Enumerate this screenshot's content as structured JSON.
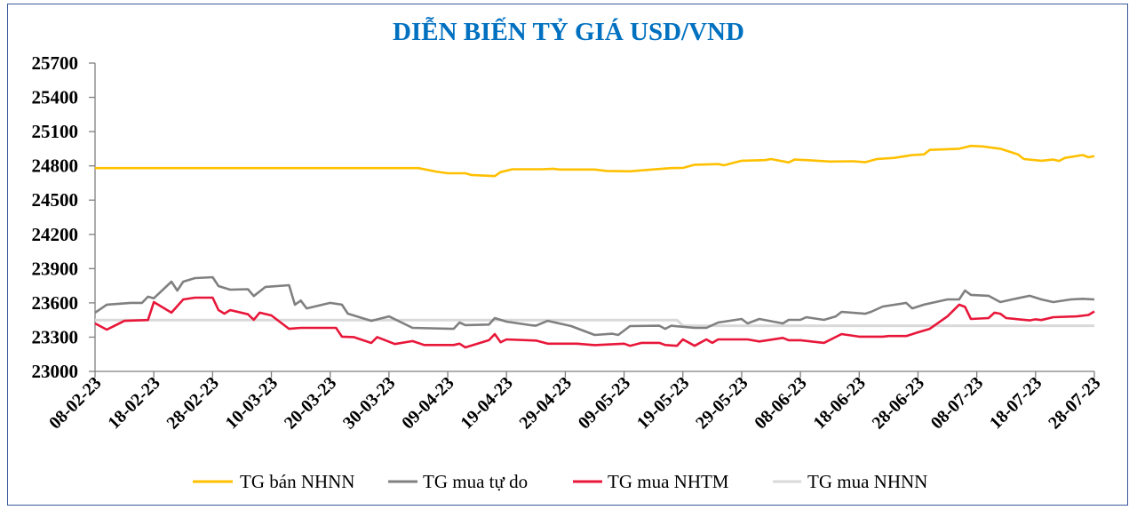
{
  "chart_data": {
    "type": "line",
    "title": "DIỄN BIẾN TỶ GIÁ USD/VND",
    "xlabel": "",
    "ylabel": "",
    "ylim": [
      23000,
      25700
    ],
    "yticks": [
      "23000",
      "23300",
      "23600",
      "23900",
      "24200",
      "24500",
      "24800",
      "25100",
      "25400",
      "25700"
    ],
    "xticks": [
      "08-02-23",
      "18-02-23",
      "28-02-23",
      "10-03-23",
      "20-03-23",
      "30-03-23",
      "09-04-23",
      "19-04-23",
      "29-04-23",
      "09-05-23",
      "19-05-23",
      "29-05-23",
      "08-06-23",
      "18-06-23",
      "28-06-23",
      "08-07-23",
      "18-07-23",
      "28-07-23"
    ],
    "grid": false,
    "legend_position": "bottom",
    "series": [
      {
        "name": "TG bán NHNN",
        "color": "#FFC000",
        "points": [
          [
            "08-02-23",
            24780
          ],
          [
            "04-04-23",
            24780
          ],
          [
            "07-04-23",
            24750
          ],
          [
            "09-04-23",
            24735
          ],
          [
            "12-04-23",
            24735
          ],
          [
            "13-04-23",
            24720
          ],
          [
            "17-04-23",
            24710
          ],
          [
            "18-04-23",
            24745
          ],
          [
            "20-04-23",
            24770
          ],
          [
            "25-04-23",
            24770
          ],
          [
            "27-04-23",
            24775
          ],
          [
            "28-04-23",
            24768
          ],
          [
            "04-05-23",
            24768
          ],
          [
            "06-05-23",
            24755
          ],
          [
            "10-05-23",
            24752
          ],
          [
            "13-05-23",
            24765
          ],
          [
            "17-05-23",
            24780
          ],
          [
            "19-05-23",
            24782
          ],
          [
            "21-05-23",
            24810
          ],
          [
            "25-05-23",
            24815
          ],
          [
            "26-05-23",
            24805
          ],
          [
            "29-05-23",
            24845
          ],
          [
            "02-06-23",
            24850
          ],
          [
            "03-06-23",
            24860
          ],
          [
            "06-06-23",
            24830
          ],
          [
            "07-06-23",
            24855
          ],
          [
            "09-06-23",
            24850
          ],
          [
            "13-06-23",
            24838
          ],
          [
            "17-06-23",
            24840
          ],
          [
            "19-06-23",
            24832
          ],
          [
            "21-06-23",
            24860
          ],
          [
            "24-06-23",
            24870
          ],
          [
            "27-06-23",
            24895
          ],
          [
            "29-06-23",
            24900
          ],
          [
            "30-06-23",
            24940
          ],
          [
            "05-07-23",
            24950
          ],
          [
            "07-07-23",
            24975
          ],
          [
            "09-07-23",
            24970
          ],
          [
            "12-07-23",
            24950
          ],
          [
            "15-07-23",
            24900
          ],
          [
            "16-07-23",
            24860
          ],
          [
            "19-07-23",
            24845
          ],
          [
            "21-07-23",
            24855
          ],
          [
            "22-07-23",
            24843
          ],
          [
            "23-07-23",
            24870
          ],
          [
            "26-07-23",
            24895
          ],
          [
            "27-07-23",
            24875
          ],
          [
            "28-07-23",
            24885
          ]
        ]
      },
      {
        "name": "TG mua tự do",
        "color": "#808080",
        "points": [
          [
            "08-02-23",
            23514
          ],
          [
            "10-02-23",
            23584
          ],
          [
            "14-02-23",
            23600
          ],
          [
            "16-02-23",
            23600
          ],
          [
            "17-02-23",
            23654
          ],
          [
            "18-02-23",
            23640
          ],
          [
            "21-02-23",
            23786
          ],
          [
            "22-02-23",
            23708
          ],
          [
            "23-02-23",
            23786
          ],
          [
            "25-02-23",
            23817
          ],
          [
            "28-02-23",
            23825
          ],
          [
            "01-03-23",
            23747
          ],
          [
            "03-03-23",
            23716
          ],
          [
            "06-03-23",
            23720
          ],
          [
            "07-03-23",
            23660
          ],
          [
            "09-03-23",
            23740
          ],
          [
            "13-03-23",
            23755
          ],
          [
            "14-03-23",
            23584
          ],
          [
            "15-03-23",
            23620
          ],
          [
            "16-03-23",
            23552
          ],
          [
            "20-03-23",
            23600
          ],
          [
            "22-03-23",
            23584
          ],
          [
            "23-03-23",
            23506
          ],
          [
            "27-03-23",
            23443
          ],
          [
            "30-03-23",
            23482
          ],
          [
            "03-04-23",
            23381
          ],
          [
            "10-04-23",
            23373
          ],
          [
            "11-04-23",
            23428
          ],
          [
            "12-04-23",
            23405
          ],
          [
            "16-04-23",
            23410
          ],
          [
            "17-04-23",
            23467
          ],
          [
            "19-04-23",
            23436
          ],
          [
            "23-04-23",
            23405
          ],
          [
            "24-04-23",
            23400
          ],
          [
            "26-04-23",
            23443
          ],
          [
            "30-04-23",
            23397
          ],
          [
            "04-05-23",
            23319
          ],
          [
            "07-05-23",
            23330
          ],
          [
            "08-05-23",
            23319
          ],
          [
            "10-05-23",
            23397
          ],
          [
            "15-05-23",
            23400
          ],
          [
            "16-05-23",
            23373
          ],
          [
            "17-05-23",
            23400
          ],
          [
            "21-05-23",
            23381
          ],
          [
            "23-05-23",
            23381
          ],
          [
            "25-05-23",
            23428
          ],
          [
            "29-05-23",
            23459
          ],
          [
            "30-05-23",
            23420
          ],
          [
            "01-06-23",
            23459
          ],
          [
            "05-06-23",
            23420
          ],
          [
            "06-06-23",
            23451
          ],
          [
            "08-06-23",
            23451
          ],
          [
            "09-06-23",
            23475
          ],
          [
            "12-06-23",
            23451
          ],
          [
            "14-06-23",
            23482
          ],
          [
            "15-06-23",
            23521
          ],
          [
            "19-06-23",
            23505
          ],
          [
            "20-06-23",
            23521
          ],
          [
            "22-06-23",
            23568
          ],
          [
            "26-06-23",
            23600
          ],
          [
            "27-06-23",
            23552
          ],
          [
            "29-06-23",
            23584
          ],
          [
            "03-07-23",
            23630
          ],
          [
            "05-07-23",
            23630
          ],
          [
            "06-07-23",
            23708
          ],
          [
            "07-07-23",
            23670
          ],
          [
            "10-07-23",
            23662
          ],
          [
            "12-07-23",
            23607
          ],
          [
            "14-07-23",
            23630
          ],
          [
            "17-07-23",
            23662
          ],
          [
            "19-07-23",
            23630
          ],
          [
            "21-07-23",
            23607
          ],
          [
            "24-07-23",
            23630
          ],
          [
            "26-07-23",
            23636
          ],
          [
            "28-07-23",
            23630
          ]
        ]
      },
      {
        "name": "TG mua NHTM",
        "color": "#E8173A",
        "points": [
          [
            "08-02-23",
            23420
          ],
          [
            "10-02-23",
            23366
          ],
          [
            "13-02-23",
            23443
          ],
          [
            "17-02-23",
            23450
          ],
          [
            "18-02-23",
            23607
          ],
          [
            "21-02-23",
            23514
          ],
          [
            "23-02-23",
            23630
          ],
          [
            "25-02-23",
            23646
          ],
          [
            "28-02-23",
            23646
          ],
          [
            "01-03-23",
            23537
          ],
          [
            "02-03-23",
            23506
          ],
          [
            "03-03-23",
            23537
          ],
          [
            "06-03-23",
            23500
          ],
          [
            "07-03-23",
            23452
          ],
          [
            "08-03-23",
            23514
          ],
          [
            "10-03-23",
            23490
          ],
          [
            "13-03-23",
            23373
          ],
          [
            "15-03-23",
            23381
          ],
          [
            "21-03-23",
            23381
          ],
          [
            "22-03-23",
            23304
          ],
          [
            "24-03-23",
            23300
          ],
          [
            "27-03-23",
            23249
          ],
          [
            "28-03-23",
            23300
          ],
          [
            "31-03-23",
            23240
          ],
          [
            "03-04-23",
            23265
          ],
          [
            "05-04-23",
            23231
          ],
          [
            "10-04-23",
            23231
          ],
          [
            "11-04-23",
            23243
          ],
          [
            "12-04-23",
            23210
          ],
          [
            "16-04-23",
            23273
          ],
          [
            "17-04-23",
            23327
          ],
          [
            "18-04-23",
            23255
          ],
          [
            "19-04-23",
            23280
          ],
          [
            "24-04-23",
            23270
          ],
          [
            "26-04-23",
            23243
          ],
          [
            "01-05-23",
            23243
          ],
          [
            "04-05-23",
            23230
          ],
          [
            "09-05-23",
            23243
          ],
          [
            "10-05-23",
            23224
          ],
          [
            "12-05-23",
            23250
          ],
          [
            "15-05-23",
            23250
          ],
          [
            "16-05-23",
            23231
          ],
          [
            "18-05-23",
            23224
          ],
          [
            "19-05-23",
            23280
          ],
          [
            "21-05-23",
            23224
          ],
          [
            "23-05-23",
            23280
          ],
          [
            "24-05-23",
            23250
          ],
          [
            "25-05-23",
            23280
          ],
          [
            "30-05-23",
            23280
          ],
          [
            "01-06-23",
            23262
          ],
          [
            "05-06-23",
            23293
          ],
          [
            "06-06-23",
            23273
          ],
          [
            "08-06-23",
            23273
          ],
          [
            "12-06-23",
            23250
          ],
          [
            "15-06-23",
            23327
          ],
          [
            "18-06-23",
            23304
          ],
          [
            "22-06-23",
            23304
          ],
          [
            "23-06-23",
            23310
          ],
          [
            "26-06-23",
            23310
          ],
          [
            "28-06-23",
            23342
          ],
          [
            "30-06-23",
            23373
          ],
          [
            "03-07-23",
            23482
          ],
          [
            "05-07-23",
            23584
          ],
          [
            "06-07-23",
            23565
          ],
          [
            "07-07-23",
            23459
          ],
          [
            "10-07-23",
            23467
          ],
          [
            "11-07-23",
            23514
          ],
          [
            "12-07-23",
            23505
          ],
          [
            "13-07-23",
            23467
          ],
          [
            "17-07-23",
            23447
          ],
          [
            "18-07-23",
            23456
          ],
          [
            "19-07-23",
            23450
          ],
          [
            "21-07-23",
            23475
          ],
          [
            "25-07-23",
            23482
          ],
          [
            "27-07-23",
            23494
          ],
          [
            "28-07-23",
            23525
          ]
        ]
      },
      {
        "name": "TG mua NHNN",
        "color": "#D9D9D9",
        "points": [
          [
            "08-02-23",
            23450
          ],
          [
            "18-05-23",
            23450
          ],
          [
            "19-05-23",
            23400
          ],
          [
            "28-07-23",
            23400
          ]
        ]
      }
    ]
  },
  "axis_color": "#7F7F7F",
  "title_color": "#0070C0",
  "frame_color": "#3A5A9A"
}
